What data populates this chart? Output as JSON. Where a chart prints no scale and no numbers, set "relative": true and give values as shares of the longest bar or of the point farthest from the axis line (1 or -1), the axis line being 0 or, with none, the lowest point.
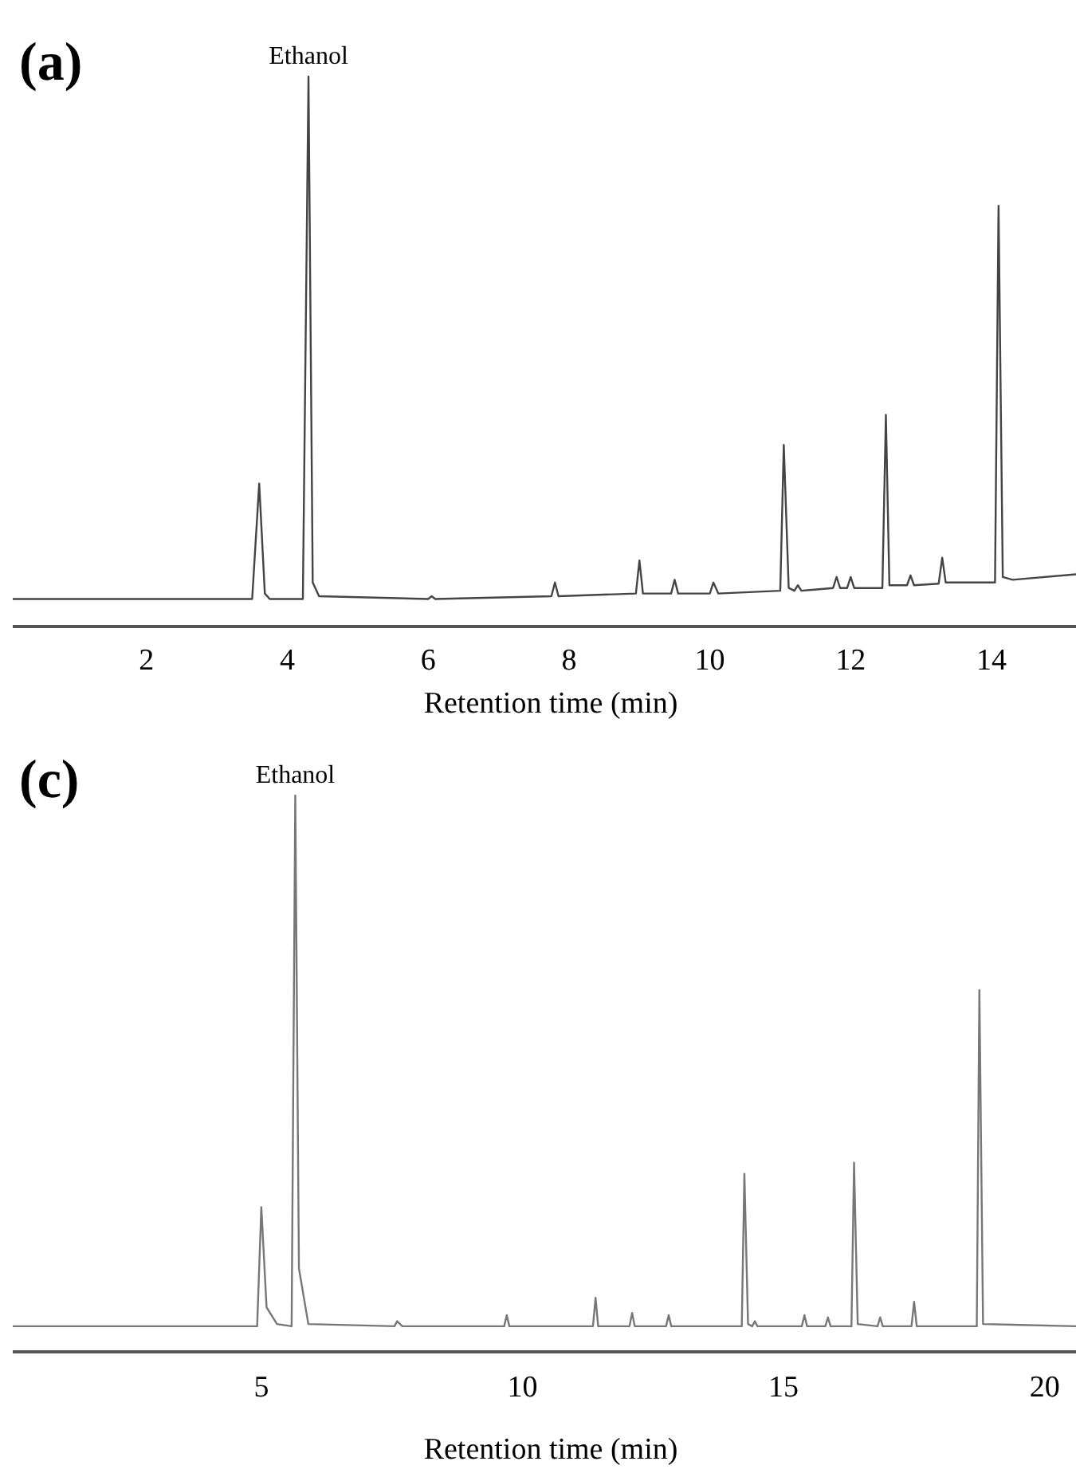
{
  "chart_data": [
    {
      "type": "line",
      "title": "(a)",
      "xlabel": "Retention time (min)",
      "relative": true,
      "xlim": [
        0.1,
        15.2
      ],
      "xticks": [
        2,
        4,
        6,
        8,
        10,
        12,
        14
      ],
      "marker": "none",
      "line_style": "solid",
      "annotations": [
        {
          "text": "Ethanol",
          "x": 4.3,
          "y": 1.0
        }
      ],
      "series": [
        {
          "color": "#444444",
          "x": [
            0.1,
            3.5,
            3.6,
            3.68,
            3.75,
            4.22,
            4.3,
            4.36,
            4.45,
            6.0,
            6.05,
            6.1,
            7.75,
            7.8,
            7.85,
            8.95,
            9.0,
            9.05,
            9.45,
            9.5,
            9.55,
            10.0,
            10.05,
            10.12,
            11.0,
            11.05,
            11.12,
            11.2,
            11.25,
            11.3,
            11.75,
            11.8,
            11.85,
            11.95,
            12.0,
            12.05,
            12.45,
            12.5,
            12.55,
            12.8,
            12.85,
            12.9,
            13.25,
            13.3,
            13.35,
            14.05,
            14.1,
            14.16,
            14.3,
            15.2
          ],
          "values": [
            0.05,
            0.05,
            0.26,
            0.06,
            0.05,
            0.05,
            1.0,
            0.08,
            0.055,
            0.05,
            0.055,
            0.05,
            0.055,
            0.08,
            0.055,
            0.06,
            0.12,
            0.06,
            0.06,
            0.085,
            0.06,
            0.06,
            0.08,
            0.06,
            0.065,
            0.33,
            0.07,
            0.065,
            0.075,
            0.065,
            0.07,
            0.09,
            0.07,
            0.07,
            0.09,
            0.07,
            0.07,
            0.385,
            0.075,
            0.075,
            0.093,
            0.075,
            0.078,
            0.125,
            0.08,
            0.08,
            0.765,
            0.09,
            0.085,
            0.095
          ]
        }
      ]
    },
    {
      "type": "line",
      "title": "(c)",
      "xlabel": "Retention time (min)",
      "relative": true,
      "xlim": [
        0.24,
        20.6
      ],
      "xticks": [
        5,
        10,
        15,
        20
      ],
      "marker": "none",
      "line_style": "solid",
      "annotations": [
        {
          "text": "Ethanol",
          "x": 5.65,
          "y": 1.0
        }
      ],
      "series": [
        {
          "color": "#777777",
          "x": [
            0.24,
            4.92,
            5.0,
            5.1,
            5.3,
            5.58,
            5.65,
            5.72,
            5.9,
            7.55,
            7.6,
            7.7,
            9.65,
            9.7,
            9.75,
            11.35,
            11.4,
            11.45,
            12.05,
            12.1,
            12.15,
            12.75,
            12.8,
            12.85,
            14.2,
            14.25,
            14.32,
            14.4,
            14.45,
            14.5,
            15.35,
            15.4,
            15.45,
            15.8,
            15.85,
            15.9,
            16.3,
            16.35,
            16.42,
            16.8,
            16.85,
            16.9,
            17.45,
            17.5,
            17.55,
            18.7,
            18.75,
            18.82,
            20.6
          ],
          "values": [
            0.046,
            0.046,
            0.26,
            0.08,
            0.05,
            0.046,
            1.0,
            0.15,
            0.05,
            0.046,
            0.055,
            0.046,
            0.046,
            0.066,
            0.046,
            0.046,
            0.097,
            0.046,
            0.046,
            0.07,
            0.046,
            0.046,
            0.066,
            0.046,
            0.046,
            0.32,
            0.05,
            0.046,
            0.055,
            0.046,
            0.046,
            0.066,
            0.046,
            0.046,
            0.062,
            0.046,
            0.046,
            0.34,
            0.05,
            0.046,
            0.062,
            0.046,
            0.046,
            0.09,
            0.046,
            0.046,
            0.65,
            0.05,
            0.046
          ]
        }
      ]
    }
  ]
}
